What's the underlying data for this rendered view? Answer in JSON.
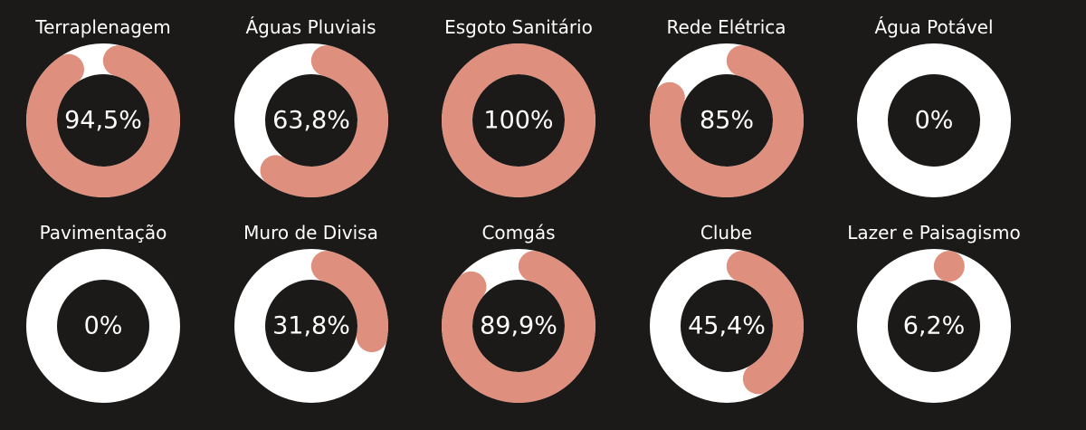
{
  "colors": {
    "background": "#1b1a19",
    "progress": "#de8f7d",
    "track": "#ffffff",
    "text": "#ffffff"
  },
  "chart_data": {
    "type": "donut-progress",
    "items": [
      {
        "name": "Terraplenagem",
        "value": 94.5,
        "label": "94,5%"
      },
      {
        "name": "Águas Pluviais",
        "value": 63.8,
        "label": "63,8%"
      },
      {
        "name": "Esgoto Sanitário",
        "value": 100,
        "label": "100%"
      },
      {
        "name": "Rede Elétrica",
        "value": 85,
        "label": "85%"
      },
      {
        "name": "Água Potável",
        "value": 0,
        "label": "0%"
      },
      {
        "name": "Pavimentação",
        "value": 0,
        "label": "0%"
      },
      {
        "name": "Muro de Divisa",
        "value": 31.8,
        "label": "31,8%"
      },
      {
        "name": "Comgás",
        "value": 89.9,
        "label": "89,9%"
      },
      {
        "name": "Clube",
        "value": 45.4,
        "label": "45,4%"
      },
      {
        "name": "Lazer e Paisagismo",
        "value": 6.2,
        "label": "6,2%"
      }
    ]
  }
}
